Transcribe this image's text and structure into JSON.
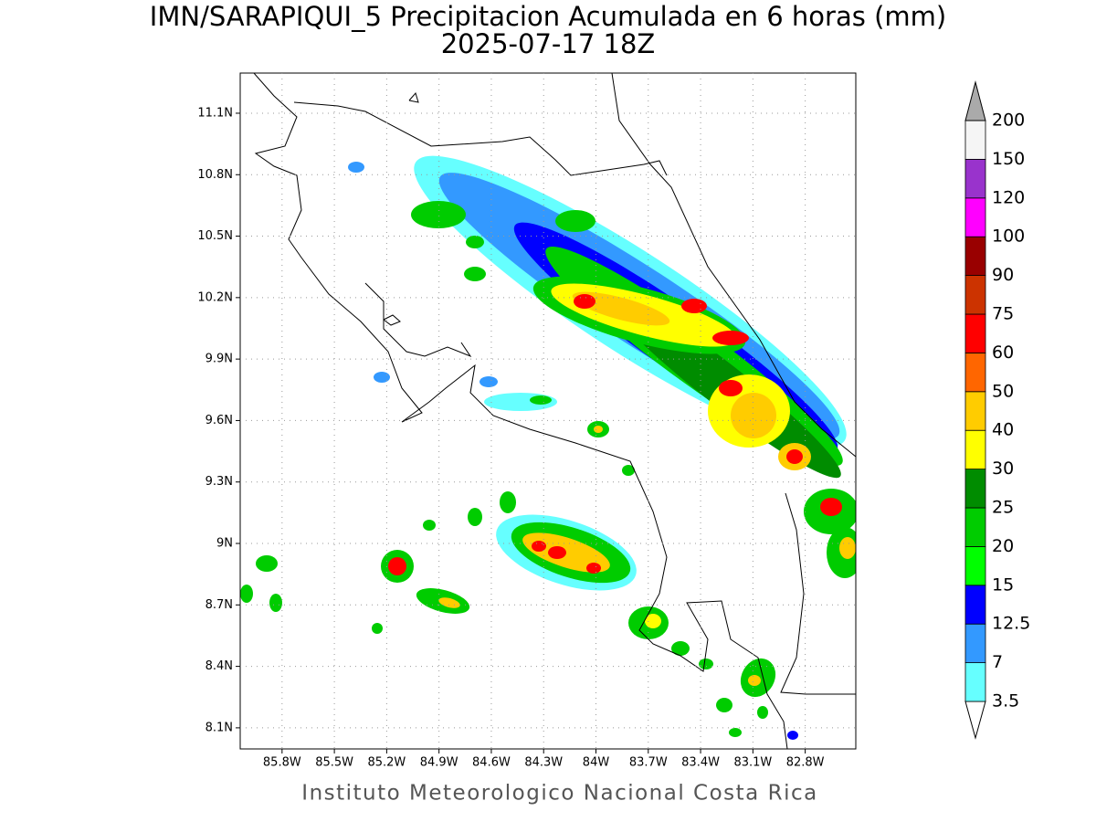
{
  "title": "IMN/SARAPIQUI_5 Precipitacion Acumulada en 6 horas (mm)",
  "subtitle": "2025-07-17 18Z",
  "footer": "Instituto Meteorologico Nacional Costa Rica",
  "map": {
    "xlim": [
      -86.04,
      -82.51
    ],
    "ylim": [
      7.997,
      11.296
    ],
    "xticks": [
      {
        "value": -85.8,
        "label": "85.8W"
      },
      {
        "value": -85.5,
        "label": "85.5W"
      },
      {
        "value": -85.2,
        "label": "85.2W"
      },
      {
        "value": -84.9,
        "label": "84.9W"
      },
      {
        "value": -84.6,
        "label": "84.6W"
      },
      {
        "value": -84.3,
        "label": "84.3W"
      },
      {
        "value": -84.0,
        "label": "84W"
      },
      {
        "value": -83.7,
        "label": "83.7W"
      },
      {
        "value": -83.4,
        "label": "83.4W"
      },
      {
        "value": -83.1,
        "label": "83.1W"
      },
      {
        "value": -82.8,
        "label": "82.8W"
      }
    ],
    "yticks": [
      {
        "value": 8.1,
        "label": "8.1N"
      },
      {
        "value": 8.4,
        "label": "8.4N"
      },
      {
        "value": 8.7,
        "label": "8.7N"
      },
      {
        "value": 9.0,
        "label": "9N"
      },
      {
        "value": 9.3,
        "label": "9.3N"
      },
      {
        "value": 9.6,
        "label": "9.6N"
      },
      {
        "value": 9.9,
        "label": "9.9N"
      },
      {
        "value": 10.2,
        "label": "10.2N"
      },
      {
        "value": 10.5,
        "label": "10.5N"
      },
      {
        "value": 10.8,
        "label": "10.8N"
      },
      {
        "value": 11.1,
        "label": "11.1N"
      }
    ],
    "grid": true
  },
  "colorbar": {
    "levels": [
      3.5,
      7,
      12.5,
      15,
      20,
      25,
      30,
      40,
      50,
      60,
      75,
      90,
      100,
      120,
      150,
      200
    ],
    "colors": [
      "#ffffff",
      "#66ffff",
      "#3399ff",
      "#0000ff",
      "#00ff00",
      "#00cc00",
      "#008c00",
      "#ffff00",
      "#ffcc00",
      "#ff6600",
      "#ff0000",
      "#cc3300",
      "#990000",
      "#ff00ff",
      "#9933cc",
      "#f5f5f5",
      "#aaaaaa"
    ]
  }
}
